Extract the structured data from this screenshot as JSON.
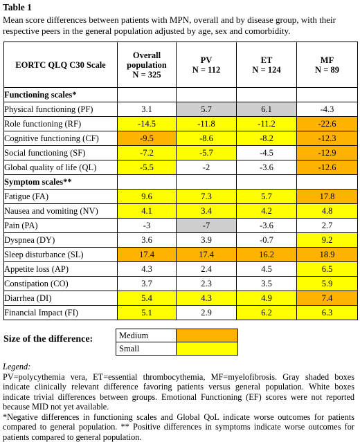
{
  "table_label": "Table 1",
  "caption": "Mean score differences between patients with MPN, overall and by disease group, with their respective peers in the general population adjusted by age, sex and comorbidity.",
  "headers": {
    "scale": "EORTC QLQ C30 Scale",
    "overall_line1": "Overall",
    "overall_line2": "population",
    "overall_n": "N = 325",
    "pv_name": "PV",
    "pv_n": "N = 112",
    "et_name": "ET",
    "et_n": "N = 124",
    "mf_name": "MF",
    "mf_n": "N = 89"
  },
  "colors": {
    "small": "#ffff00",
    "medium": "#ffb300",
    "gray": "#cfcfcf"
  },
  "functioning_section": "Functioning scales*",
  "functioning_rows": [
    {
      "label": "Physical functioning (PF)",
      "overall": "3.1",
      "pv": "5.7",
      "et": "6.1",
      "mf": "-4.3"
    },
    {
      "label": "Role functioning (RF)",
      "overall": "-14.5",
      "pv": "-11.8",
      "et": "-11.2",
      "mf": "-22.6"
    },
    {
      "label": "Cognitive functioning (CF)",
      "overall": "-9.5",
      "pv": "-8.6",
      "et": "-8.2",
      "mf": "-12.3"
    },
    {
      "label": "Social functioning (SF)",
      "overall": "-7.2",
      "pv": "-5.7",
      "et": "-4.5",
      "mf": "-12.9"
    },
    {
      "label": "Global quality of life (QL)",
      "overall": "-5.5",
      "pv": "-2",
      "et": "-3.6",
      "mf": "-12.6"
    }
  ],
  "symptom_section": "Symptom scales**",
  "symptom_rows": [
    {
      "label": "Fatigue (FA)",
      "overall": "9.6",
      "pv": "7.3",
      "et": "5.7",
      "mf": "17.8"
    },
    {
      "label": "Nausea and vomiting (NV)",
      "overall": "4.1",
      "pv": "3.4",
      "et": "4.2",
      "mf": "4.8"
    },
    {
      "label": "Pain (PA)",
      "overall": "-3",
      "pv": "-7",
      "et": "-3.6",
      "mf": "2.7"
    },
    {
      "label": "Dyspnea (DY)",
      "overall": "3.6",
      "pv": "3.9",
      "et": "-0.7",
      "mf": "9.2"
    },
    {
      "label": "Sleep disturbance (SL)",
      "overall": "17.4",
      "pv": "17.4",
      "et": "16.2",
      "mf": "18.9"
    },
    {
      "label": "Appetite loss (AP)",
      "overall": "4.3",
      "pv": "2.4",
      "et": "4.5",
      "mf": "6.5"
    },
    {
      "label": "Constipation (CO)",
      "overall": "3.7",
      "pv": "2.3",
      "et": "3.5",
      "mf": "5.9"
    },
    {
      "label": "Diarrhea (DI)",
      "overall": "5.4",
      "pv": "4.3",
      "et": "4.9",
      "mf": "7.4"
    },
    {
      "label": "Financial Impact (FI)",
      "overall": "5.1",
      "pv": "2.9",
      "et": "6.2",
      "mf": "6.3"
    }
  ],
  "size_title": "Size of the difference:",
  "size_legend": {
    "medium": "Medium",
    "small": "Small"
  },
  "legend_heading": "Legend:",
  "legend_text": "PV=polycythemia vera, ET=essential thrombocythemia, MF=myelofibrosis. Gray shaded boxes indicate clinically relevant difference favoring patients versus general population. White boxes indicate trivial differences between groups. Emotional Functioning (EF) scores were not reported because MID not yet available.",
  "footnote": "*Negative differences in functioning scales and Global QoL indicate worse outcomes for patients compared to general population. ** Positive differences in symptoms indicate worse outcomes for patients compared to general population."
}
